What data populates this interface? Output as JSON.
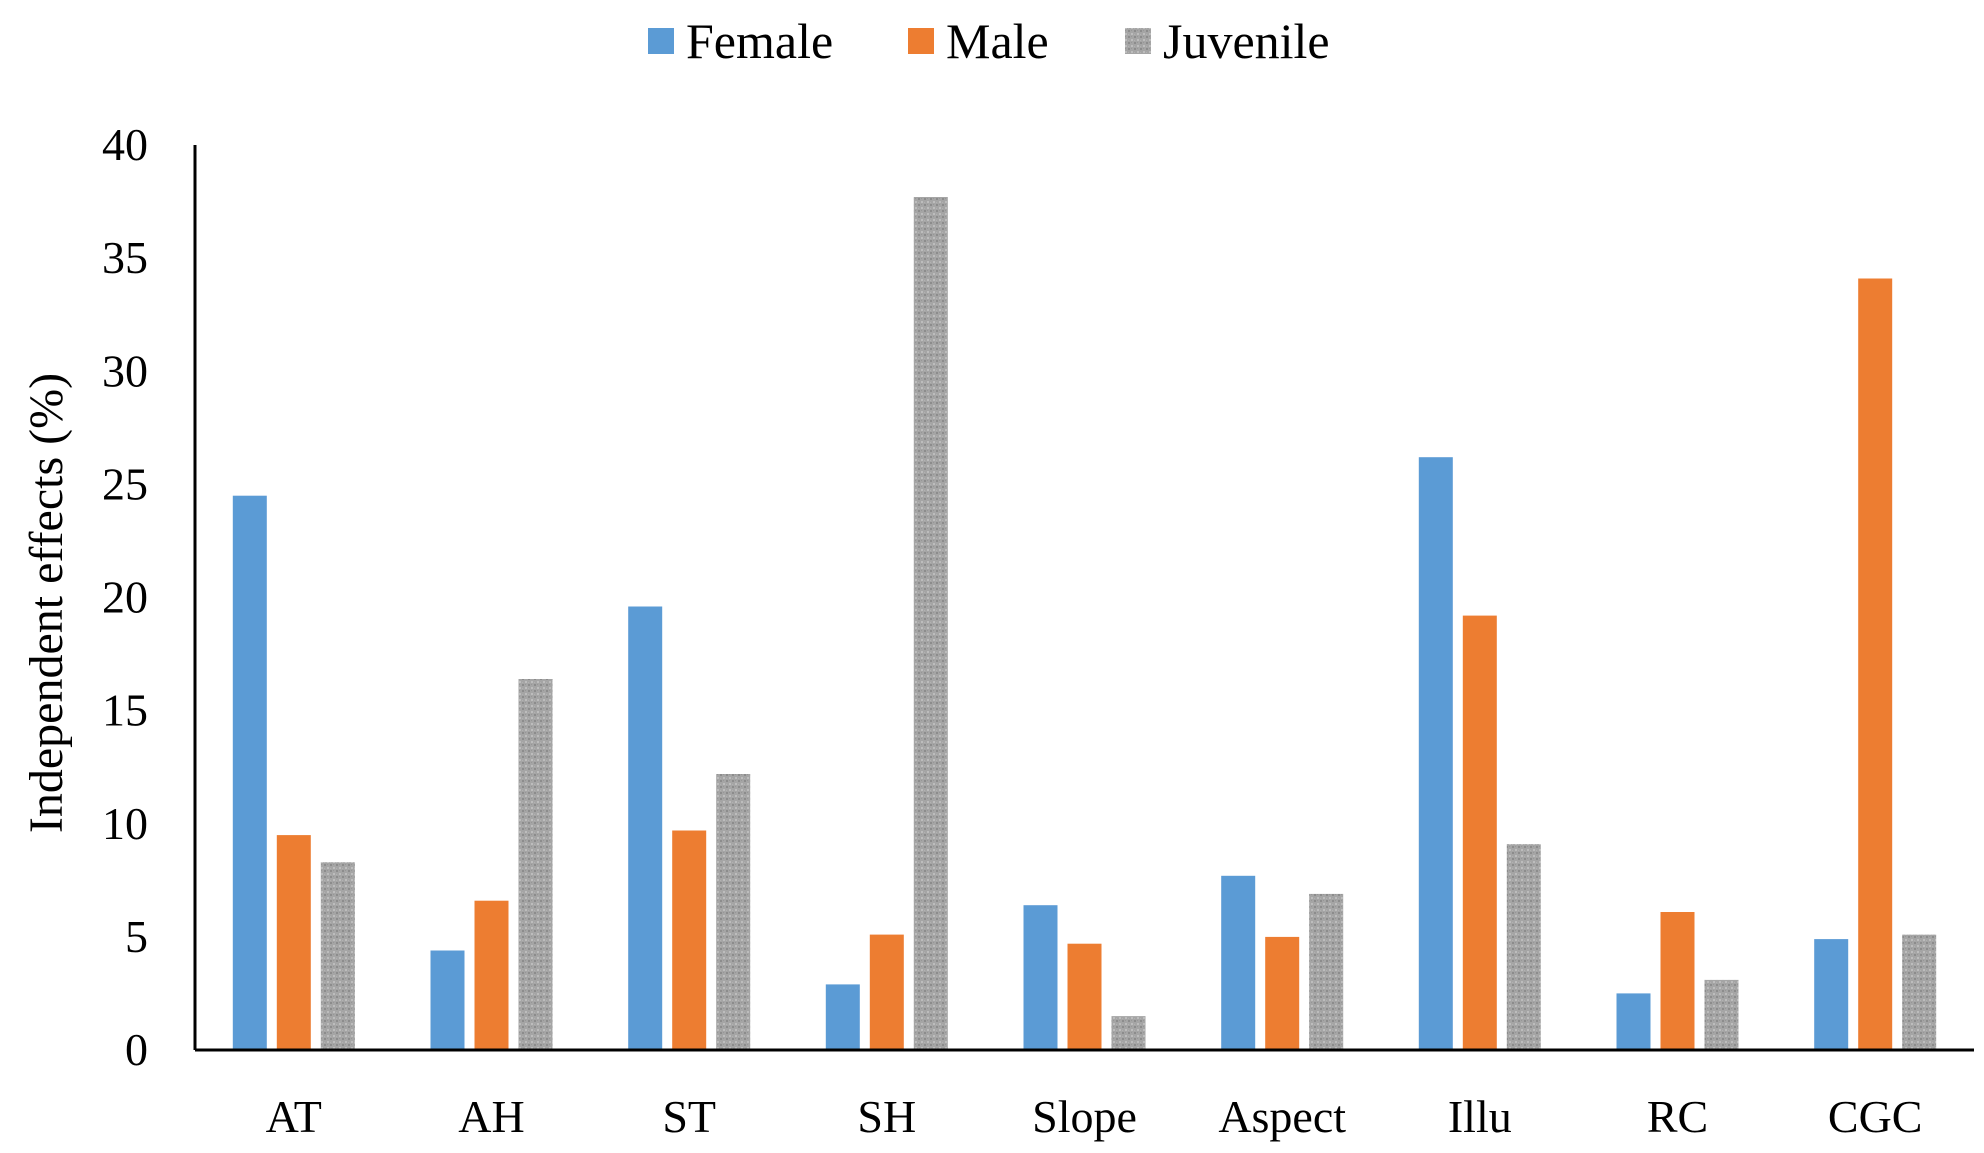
{
  "chart_data": {
    "type": "bar",
    "ylabel": "Independent effects (%)",
    "ylim": [
      0,
      40
    ],
    "yticks": [
      0,
      5,
      10,
      15,
      20,
      25,
      30,
      35,
      40
    ],
    "categories": [
      "AT",
      "AH",
      "ST",
      "SH",
      "Slope",
      "Aspect",
      "Illu",
      "RC",
      "CGC"
    ],
    "legend_position": "top-center",
    "grid": false,
    "series": [
      {
        "name": "Female",
        "color": "#5b9bd5",
        "pattern": "solid",
        "values": [
          24.5,
          4.4,
          19.6,
          2.9,
          6.4,
          7.7,
          26.2,
          2.5,
          4.9
        ]
      },
      {
        "name": "Male",
        "color": "#ed7d31",
        "pattern": "solid",
        "values": [
          9.5,
          6.6,
          9.7,
          5.1,
          4.7,
          5.0,
          19.2,
          6.1,
          34.1
        ]
      },
      {
        "name": "Juvenile",
        "color": "#a5a5a5",
        "pattern": "speckled",
        "values": [
          8.3,
          16.4,
          12.2,
          37.7,
          1.5,
          6.9,
          9.1,
          3.1,
          5.1
        ]
      }
    ]
  }
}
